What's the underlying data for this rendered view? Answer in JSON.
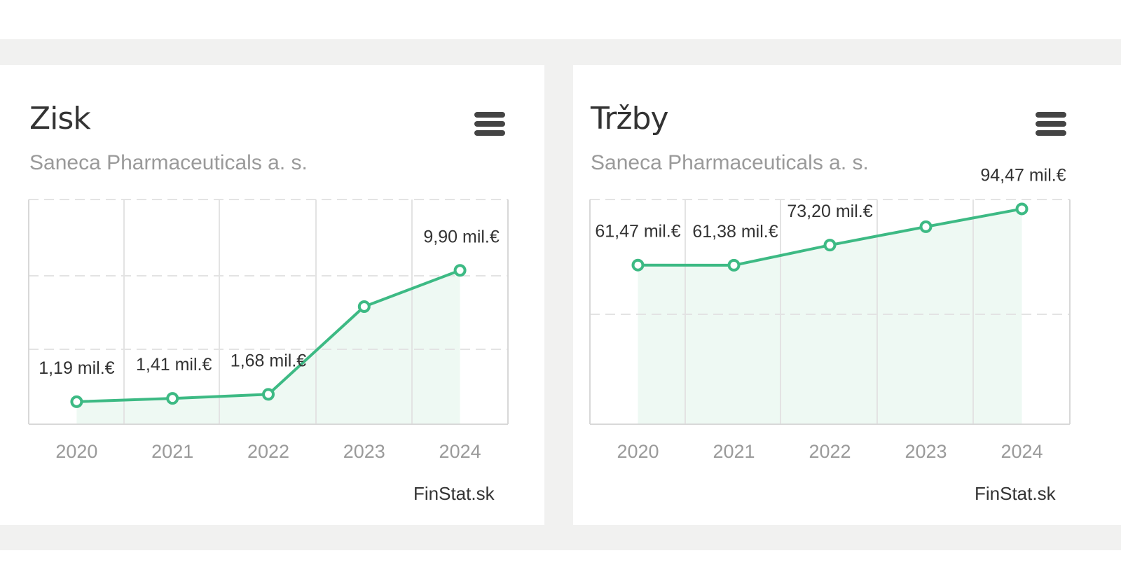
{
  "cards": [
    {
      "title": "Zisk",
      "subtitle": "Saneca Pharmaceuticals a. s.",
      "credit": "FinStat.sk",
      "menu_icon": "hamburger-menu-icon"
    },
    {
      "title": "Tržby",
      "subtitle": "Saneca Pharmaceuticals a. s.",
      "credit": "FinStat.sk",
      "menu_icon": "hamburger-menu-icon"
    }
  ],
  "colors": {
    "line": "#3dba84",
    "area": "#eef9f3",
    "grid": "#e3e3e3",
    "axis_text": "#9a9a9a",
    "label_text": "#333333"
  },
  "chart_data": [
    {
      "type": "area",
      "title": "Zisk",
      "subtitle": "Saneca Pharmaceuticals a. s.",
      "unit": "mil.€",
      "categories": [
        "2020",
        "2021",
        "2022",
        "2023",
        "2024"
      ],
      "values": [
        1.19,
        1.41,
        1.68,
        7.5,
        9.9
      ],
      "data_labels": [
        "1,19 mil.€",
        "1,41 mil.€",
        "1,68 mil.€",
        "",
        "9,90 mil.€"
      ],
      "ylim": [
        -0.3,
        14.6
      ],
      "grid": true,
      "legend": "none"
    },
    {
      "type": "area",
      "title": "Tržby",
      "subtitle": "Saneca Pharmaceuticals a. s.",
      "unit": "mil.€",
      "categories": [
        "2020",
        "2021",
        "2022",
        "2023",
        "2024"
      ],
      "values": [
        61.47,
        61.38,
        73.2,
        84.0,
        94.47
      ],
      "data_labels": [
        "61,47 mil.€",
        "61,38 mil.€",
        "73,20 mil.€",
        "",
        "94,47 mil.€"
      ],
      "ylim": [
        -32.0,
        100.0
      ],
      "grid": true,
      "legend": "none"
    }
  ]
}
